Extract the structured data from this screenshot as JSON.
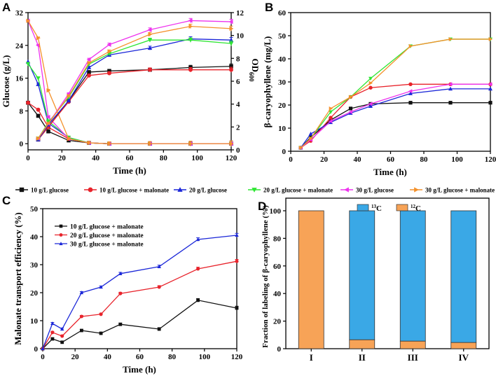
{
  "colors": {
    "black": "#111111",
    "red": "#e8232b",
    "blue": "#1b27d8",
    "green": "#2fe633",
    "magenta": "#ee33ee",
    "orange": "#f4912b",
    "c13": "#3aa8e6",
    "c12": "#f7a357"
  },
  "series_legend": {
    "items": [
      {
        "label": "10 g/L glucose",
        "color": "#111111",
        "marker": "square"
      },
      {
        "label": "10 g/L glucose + malonate",
        "color": "#e8232b",
        "marker": "circle"
      },
      {
        "label": "20 g/L glucose",
        "color": "#1b27d8",
        "marker": "triangle-up"
      },
      {
        "label": "20 g/L glucose + malonate",
        "color": "#2fe633",
        "marker": "triangle-down"
      },
      {
        "label": "30 g/L glucose",
        "color": "#ee33ee",
        "marker": "triangle-left"
      },
      {
        "label": "30 g/L glucose + malonate",
        "color": "#f4912b",
        "marker": "triangle-right"
      }
    ]
  },
  "chart_data": [
    {
      "panel": "A",
      "type": "line",
      "xlabel": "Time (h)",
      "ylabel": "Glucose (g/L)",
      "y2label": "OD600",
      "y2label_main": "OD",
      "y2label_sub": "600",
      "xlim": [
        0,
        120
      ],
      "xticks": [
        0,
        20,
        40,
        60,
        80,
        100,
        120
      ],
      "ylim": [
        -1.5,
        32
      ],
      "yticks": [
        0,
        8,
        16,
        24,
        32
      ],
      "y2lim": [
        0,
        12
      ],
      "y2ticks": [
        0,
        2,
        4,
        6,
        8,
        10,
        12
      ],
      "series": [
        {
          "name": "10 g/L glucose",
          "axis": "left",
          "kind": "glucose",
          "x": [
            0,
            6,
            12,
            24,
            36,
            48,
            72,
            96,
            120
          ],
          "values": [
            10,
            6.8,
            3.0,
            0.8,
            0.2,
            0.0,
            0.0,
            0.0,
            0.0
          ]
        },
        {
          "name": "10 g/L glucose + malonate",
          "axis": "left",
          "kind": "glucose",
          "x": [
            0,
            6,
            12,
            24,
            36,
            48,
            72,
            96,
            120
          ],
          "values": [
            10,
            8.3,
            4.0,
            1.2,
            0.2,
            0.0,
            0.0,
            0.0,
            0.0
          ]
        },
        {
          "name": "20 g/L glucose",
          "axis": "left",
          "kind": "glucose",
          "x": [
            0,
            6,
            12,
            24,
            36,
            48,
            72,
            96,
            120
          ],
          "values": [
            20,
            14.5,
            5.0,
            1.5,
            0.2,
            0.0,
            0.0,
            0.0,
            0.0
          ]
        },
        {
          "name": "20 g/L glucose + malonate",
          "axis": "left",
          "kind": "glucose",
          "x": [
            0,
            6,
            12,
            24,
            36,
            48,
            72,
            96,
            120
          ],
          "values": [
            19.5,
            16.0,
            5.5,
            1.5,
            0.2,
            0.0,
            0.0,
            0.0,
            0.0
          ]
        },
        {
          "name": "30 g/L glucose",
          "axis": "left",
          "kind": "glucose",
          "x": [
            0,
            6,
            12,
            24,
            36,
            48,
            72,
            96,
            120
          ],
          "values": [
            30,
            24.0,
            6.5,
            1.2,
            0.2,
            0.0,
            0.0,
            0.0,
            0.0
          ]
        },
        {
          "name": "30 g/L glucose + malonate",
          "axis": "left",
          "kind": "glucose",
          "x": [
            0,
            6,
            12,
            24,
            36,
            48,
            72,
            96,
            120
          ],
          "values": [
            30,
            25.8,
            13.0,
            1.2,
            0.2,
            0.0,
            0.0,
            0.0,
            0.0
          ]
        },
        {
          "name": "10 g/L glucose",
          "axis": "right",
          "kind": "OD600",
          "x": [
            6,
            12,
            24,
            36,
            48,
            72,
            96,
            120
          ],
          "values": [
            0.9,
            2.0,
            4.3,
            6.8,
            6.9,
            7.0,
            7.2,
            7.3
          ]
        },
        {
          "name": "10 g/L glucose + malonate",
          "axis": "right",
          "kind": "OD600",
          "x": [
            6,
            12,
            24,
            36,
            48,
            72,
            96,
            120
          ],
          "values": [
            0.9,
            2.0,
            4.2,
            6.5,
            6.7,
            7.0,
            7.0,
            7.0
          ]
        },
        {
          "name": "20 g/L glucose",
          "axis": "right",
          "kind": "OD600",
          "x": [
            6,
            12,
            24,
            36,
            48,
            72,
            96,
            120
          ],
          "values": [
            0.9,
            2.2,
            4.3,
            7.2,
            8.3,
            8.9,
            9.7,
            9.6
          ]
        },
        {
          "name": "20 g/L glucose + malonate",
          "axis": "right",
          "kind": "OD600",
          "x": [
            6,
            12,
            24,
            36,
            48,
            72,
            96,
            120
          ],
          "values": [
            1.0,
            2.4,
            4.6,
            7.5,
            8.4,
            9.6,
            9.6,
            9.3
          ]
        },
        {
          "name": "30 g/L glucose",
          "axis": "right",
          "kind": "OD600",
          "x": [
            6,
            12,
            24,
            36,
            48,
            72,
            96,
            120
          ],
          "values": [
            1.0,
            2.3,
            4.9,
            7.9,
            9.2,
            10.5,
            11.3,
            11.2
          ]
        },
        {
          "name": "30 g/L glucose + malonate",
          "axis": "right",
          "kind": "OD600",
          "x": [
            6,
            12,
            24,
            36,
            48,
            72,
            96,
            120
          ],
          "values": [
            1.0,
            2.3,
            4.7,
            7.6,
            8.6,
            10.1,
            10.8,
            10.6
          ]
        }
      ]
    },
    {
      "panel": "B",
      "type": "line",
      "xlabel": "Time (h)",
      "ylabel": "β-caryophyllene (mg/L)",
      "xlim": [
        0,
        120
      ],
      "xticks": [
        0,
        20,
        40,
        60,
        80,
        100,
        120
      ],
      "ylim": [
        0,
        60
      ],
      "yticks": [
        0,
        10,
        20,
        30,
        40,
        50,
        60
      ],
      "series": [
        {
          "name": "10 g/L glucose",
          "x": [
            6,
            12,
            24,
            36,
            48,
            72,
            96,
            120
          ],
          "values": [
            1.5,
            6.0,
            13.5,
            18.5,
            20.5,
            21.0,
            21.0,
            21.0
          ]
        },
        {
          "name": "10 g/L glucose + malonate",
          "x": [
            6,
            12,
            24,
            36,
            48,
            72,
            96,
            120
          ],
          "values": [
            1.5,
            4.5,
            14.5,
            23.5,
            27.5,
            29.0,
            29.0,
            29.0
          ]
        },
        {
          "name": "20 g/L glucose",
          "x": [
            6,
            12,
            24,
            36,
            48,
            72,
            96,
            120
          ],
          "values": [
            1.5,
            7.5,
            12.5,
            16.5,
            19.5,
            25.0,
            27.0,
            27.0
          ]
        },
        {
          "name": "20 g/L glucose + malonate",
          "x": [
            6,
            12,
            24,
            36,
            48,
            72,
            96,
            120
          ],
          "values": [
            1.5,
            5.5,
            17.0,
            23.5,
            31.5,
            45.5,
            48.5,
            48.5
          ]
        },
        {
          "name": "30 g/L glucose",
          "x": [
            6,
            12,
            24,
            36,
            48,
            72,
            96,
            120
          ],
          "values": [
            1.5,
            5.0,
            13.0,
            17.0,
            20.5,
            26.0,
            29.0,
            29.0
          ]
        },
        {
          "name": "30 g/L glucose + malonate",
          "x": [
            6,
            12,
            24,
            36,
            48,
            72,
            96,
            120
          ],
          "values": [
            1.5,
            5.5,
            18.5,
            23.5,
            29.5,
            45.5,
            48.5,
            48.5
          ]
        }
      ]
    },
    {
      "panel": "C",
      "type": "line",
      "xlabel": "Time (h)",
      "ylabel": "Malonate transport efficiency (%)",
      "xlim": [
        0,
        120
      ],
      "xticks": [
        0,
        20,
        40,
        60,
        80,
        100,
        120
      ],
      "ylim": [
        0,
        50
      ],
      "yticks": [
        0,
        10,
        20,
        30,
        40,
        50
      ],
      "legend": [
        "10 g/L glucose + malonate",
        "20 g/L glucose + malonate",
        "30 g/L glucose + malonate"
      ],
      "series": [
        {
          "name": "10 g/L glucose + malonate",
          "x": [
            0,
            6,
            12,
            24,
            36,
            48,
            72,
            96,
            120
          ],
          "values": [
            0,
            3.5,
            2.3,
            6.5,
            5.5,
            8.7,
            7.0,
            17.3,
            14.5
          ]
        },
        {
          "name": "20 g/L glucose + malonate",
          "x": [
            0,
            6,
            12,
            24,
            36,
            48,
            72,
            96,
            120
          ],
          "values": [
            0,
            5.8,
            4.5,
            11.5,
            12.3,
            19.7,
            22.0,
            28.5,
            31.2
          ]
        },
        {
          "name": "30 g/L glucose + malonate",
          "x": [
            0,
            6,
            12,
            24,
            36,
            48,
            72,
            96,
            120
          ],
          "values": [
            0,
            9.0,
            7.0,
            20.0,
            22.0,
            26.8,
            29.3,
            39.0,
            40.5
          ]
        }
      ]
    },
    {
      "panel": "D",
      "type": "bar",
      "stacked": true,
      "ylabel": "Fraction of labeling of β-caryophyllene (%)",
      "categories": [
        "I",
        "II",
        "III",
        "IV"
      ],
      "ylim": [
        0,
        100
      ],
      "yticks": [
        0,
        20,
        40,
        60,
        80,
        100
      ],
      "legend": [
        {
          "mass": "13",
          "element": "C",
          "color": "#3aa8e6"
        },
        {
          "mass": "12",
          "element": "C",
          "color": "#f7a357"
        }
      ],
      "series": [
        {
          "name": "12C",
          "values": [
            100,
            6.5,
            5.5,
            4.5
          ]
        },
        {
          "name": "13C",
          "values": [
            0,
            93.5,
            94.5,
            95.5
          ]
        }
      ]
    }
  ]
}
